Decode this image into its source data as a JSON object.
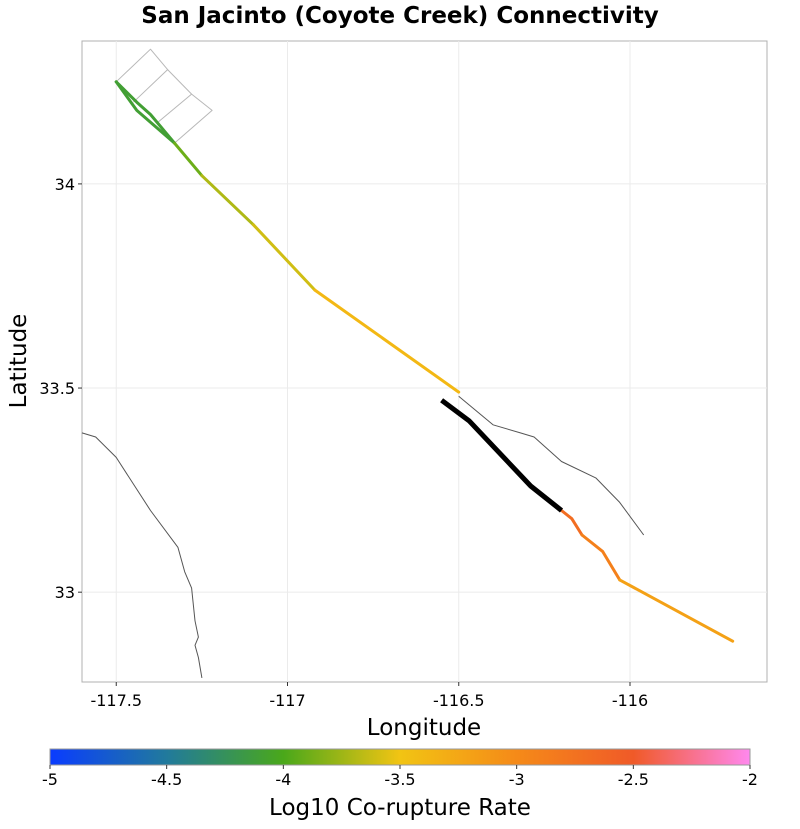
{
  "chart_data": {
    "type": "line",
    "title": "San Jacinto (Coyote Creek) Connectivity",
    "xlabel": "Longitude",
    "ylabel": "Latitude",
    "xlim": [
      -117.6,
      -115.6
    ],
    "ylim": [
      32.78,
      34.35
    ],
    "x_ticks": [
      -117.5,
      -117,
      -116.5,
      -116
    ],
    "y_ticks": [
      33,
      33.5,
      34
    ],
    "x_tick_labels": [
      "-117.5",
      "-117",
      "-116.5",
      "-116"
    ],
    "y_tick_labels": [
      "33",
      "33.5",
      "34"
    ],
    "grid": true,
    "colorbar": {
      "label": "Log10 Co-rupture Rate",
      "min": -5,
      "max": -2,
      "ticks": [
        -5,
        -4.5,
        -4,
        -3.5,
        -3,
        -2.5,
        -2
      ],
      "tick_labels": [
        "-5",
        "-4.5",
        "-4",
        "-3.5",
        "-3",
        "-2.5",
        "-2"
      ],
      "stops": [
        {
          "value": -5,
          "color": "#0a3cff"
        },
        {
          "value": -4.5,
          "color": "#217a9c"
        },
        {
          "value": -4,
          "color": "#4aa81a"
        },
        {
          "value": -3.5,
          "color": "#f2c413"
        },
        {
          "value": -3,
          "color": "#f58a18"
        },
        {
          "value": -2.5,
          "color": "#f05a28"
        },
        {
          "value": -2,
          "color": "#ff88ee"
        }
      ]
    },
    "outline_traces": [
      {
        "name": "coastline",
        "points": [
          [
            -117.6,
            33.39
          ],
          [
            -117.56,
            33.38
          ],
          [
            -117.5,
            33.33
          ],
          [
            -117.4,
            33.2
          ],
          [
            -117.32,
            33.11
          ],
          [
            -117.3,
            33.05
          ],
          [
            -117.28,
            33.01
          ],
          [
            -117.27,
            32.93
          ],
          [
            -117.26,
            32.89
          ],
          [
            -117.27,
            32.87
          ],
          [
            -117.26,
            32.84
          ],
          [
            -117.25,
            32.79
          ]
        ]
      },
      {
        "name": "box-edge-1",
        "points": [
          [
            -117.5,
            34.25
          ],
          [
            -117.4,
            34.33
          ],
          [
            -117.35,
            34.28
          ],
          [
            -117.45,
            34.2
          ]
        ]
      },
      {
        "name": "box-edge-2",
        "points": [
          [
            -117.35,
            34.28
          ],
          [
            -117.28,
            34.22
          ],
          [
            -117.38,
            34.15
          ]
        ]
      },
      {
        "name": "box-edge-3",
        "points": [
          [
            -117.28,
            34.22
          ],
          [
            -117.22,
            34.18
          ],
          [
            -117.33,
            34.1
          ]
        ]
      },
      {
        "name": "east-trace",
        "points": [
          [
            -116.5,
            33.48
          ],
          [
            -116.4,
            33.41
          ],
          [
            -116.32,
            33.39
          ],
          [
            -116.28,
            33.38
          ],
          [
            -116.2,
            33.32
          ],
          [
            -116.1,
            33.28
          ],
          [
            -116.03,
            33.22
          ],
          [
            -115.96,
            33.14
          ]
        ]
      }
    ],
    "segments": [
      {
        "points": [
          [
            -117.5,
            34.25
          ],
          [
            -117.44,
            34.2
          ],
          [
            -117.4,
            34.17
          ],
          [
            -117.36,
            34.13
          ],
          [
            -117.33,
            34.1
          ]
        ],
        "log10_rate": -4.1
      },
      {
        "points": [
          [
            -117.5,
            34.25
          ],
          [
            -117.44,
            34.18
          ],
          [
            -117.33,
            34.1
          ]
        ],
        "log10_rate": -4.1
      },
      {
        "points": [
          [
            -117.33,
            34.1
          ],
          [
            -117.25,
            34.02
          ]
        ],
        "log10_rate": -3.9
      },
      {
        "points": [
          [
            -117.25,
            34.02
          ],
          [
            -117.1,
            33.9
          ]
        ],
        "log10_rate": -3.7
      },
      {
        "points": [
          [
            -117.1,
            33.9
          ],
          [
            -116.92,
            33.74
          ]
        ],
        "log10_rate": -3.6
      },
      {
        "points": [
          [
            -116.92,
            33.74
          ],
          [
            -116.5,
            33.49
          ]
        ],
        "log10_rate": -3.4
      },
      {
        "points": [
          [
            -116.2,
            33.2
          ],
          [
            -116.17,
            33.18
          ],
          [
            -116.14,
            33.14
          ]
        ],
        "log10_rate": -2.7
      },
      {
        "points": [
          [
            -116.14,
            33.14
          ],
          [
            -116.08,
            33.1
          ],
          [
            -116.03,
            33.03
          ]
        ],
        "log10_rate": -2.9
      },
      {
        "points": [
          [
            -116.03,
            33.03
          ],
          [
            -115.7,
            32.88
          ]
        ],
        "log10_rate": -3.2
      }
    ],
    "source_section": {
      "color": "#000000",
      "points": [
        [
          -116.55,
          33.47
        ],
        [
          -116.47,
          33.42
        ],
        [
          -116.29,
          33.26
        ],
        [
          -116.2,
          33.2
        ]
      ]
    }
  }
}
